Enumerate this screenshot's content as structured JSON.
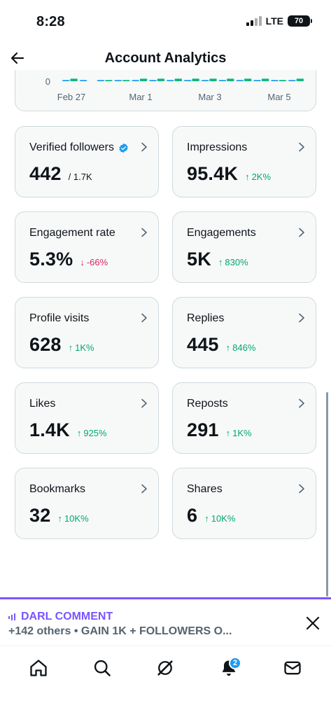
{
  "status_bar": {
    "time": "8:28",
    "network": "LTE",
    "battery": "70"
  },
  "header": {
    "title": "Account Analytics",
    "back_icon": "arrow-left-icon"
  },
  "chart_data": {
    "type": "bar",
    "y_tick_visible": "0",
    "x_ticks": [
      "Feb 27",
      "Mar 1",
      "Mar 3",
      "Mar 5"
    ],
    "series": [
      {
        "color": "#1d9bf0",
        "values": [
          1,
          1,
          1,
          1,
          1,
          1,
          1,
          1,
          1,
          1,
          1,
          1,
          1,
          1
        ]
      },
      {
        "color": "#00ba7c",
        "values": [
          2,
          0,
          1,
          1,
          2,
          2,
          2,
          2,
          2,
          2,
          2,
          2,
          1,
          2
        ]
      }
    ]
  },
  "metrics": [
    {
      "label": "Verified followers",
      "value": "442",
      "sub": "/ 1.7K",
      "change": "",
      "direction": "none",
      "verified": true
    },
    {
      "label": "Impressions",
      "value": "95.4K",
      "sub": "",
      "change": "2K%",
      "direction": "up"
    },
    {
      "label": "Engagement rate",
      "value": "5.3%",
      "sub": "",
      "change": "-66%",
      "direction": "down"
    },
    {
      "label": "Engagements",
      "value": "5K",
      "sub": "",
      "change": "830%",
      "direction": "up"
    },
    {
      "label": "Profile visits",
      "value": "628",
      "sub": "",
      "change": "1K%",
      "direction": "up"
    },
    {
      "label": "Replies",
      "value": "445",
      "sub": "",
      "change": "846%",
      "direction": "up"
    },
    {
      "label": "Likes",
      "value": "1.4K",
      "sub": "",
      "change": "925%",
      "direction": "up"
    },
    {
      "label": "Reposts",
      "value": "291",
      "sub": "",
      "change": "1K%",
      "direction": "up"
    },
    {
      "label": "Bookmarks",
      "value": "32",
      "sub": "",
      "change": "10K%",
      "direction": "up"
    },
    {
      "label": "Shares",
      "value": "6",
      "sub": "",
      "change": "10K%",
      "direction": "up"
    }
  ],
  "banner": {
    "title": "DARL COMMENT",
    "subtitle": "+142 others • GAIN 1K + FOLLOWERS O...",
    "accent": "#7856ff"
  },
  "bottom_nav": {
    "items": [
      "home-icon",
      "search-icon",
      "grok-icon",
      "notifications-icon",
      "messages-icon"
    ],
    "notification_count": "2"
  },
  "colors": {
    "accent": "#1d9bf0",
    "positive": "#00a96b",
    "negative": "#e0245e",
    "card_bg": "#f7f9f9",
    "border": "#cfd9de"
  }
}
